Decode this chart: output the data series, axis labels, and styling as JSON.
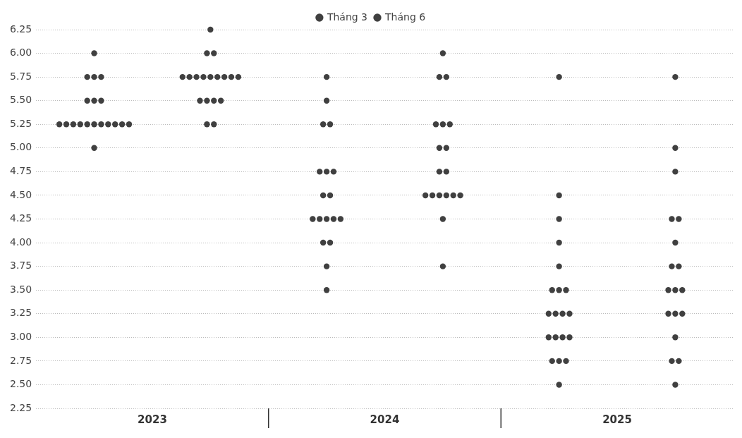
{
  "chart_data": {
    "type": "scatter",
    "xlim": [
      2022.5,
      2025.5
    ],
    "xticks": [
      2023,
      2024,
      2025
    ],
    "series": [
      {
        "name": "Tháng 3",
        "color": "#404040",
        "x": [
          2022.75,
          2022.72,
          2022.75,
          2022.78,
          2022.72,
          2022.75,
          2022.78,
          2022.6,
          2022.63,
          2022.66,
          2022.69,
          2022.72,
          2022.75,
          2022.78,
          2022.81,
          2022.84,
          2022.87,
          2022.9,
          2022.75,
          2023.75,
          2023.75,
          2023.735,
          2023.765,
          2023.72,
          2023.75,
          2023.78,
          2023.735,
          2023.765,
          2023.69,
          2023.72,
          2023.75,
          2023.78,
          2023.81,
          2023.735,
          2023.765,
          2023.75,
          2023.75,
          2024.75,
          2024.75,
          2024.75,
          2024.75,
          2024.75,
          2024.72,
          2024.75,
          2024.78,
          2024.705,
          2024.735,
          2024.765,
          2024.795,
          2024.705,
          2024.735,
          2024.765,
          2024.795,
          2024.72,
          2024.75,
          2024.78,
          2024.75
        ],
        "values": [
          6.0,
          5.75,
          5.75,
          5.75,
          5.5,
          5.5,
          5.5,
          5.25,
          5.25,
          5.25,
          5.25,
          5.25,
          5.25,
          5.25,
          5.25,
          5.25,
          5.25,
          5.25,
          5.0,
          5.75,
          5.5,
          5.25,
          5.25,
          4.75,
          4.75,
          4.75,
          4.5,
          4.5,
          4.25,
          4.25,
          4.25,
          4.25,
          4.25,
          4.0,
          4.0,
          3.75,
          3.5,
          5.75,
          4.5,
          4.25,
          4.0,
          3.75,
          3.5,
          3.5,
          3.5,
          3.25,
          3.25,
          3.25,
          3.25,
          3.0,
          3.0,
          3.0,
          3.0,
          2.75,
          2.75,
          2.75,
          2.5
        ]
      },
      {
        "name": "Tháng 6",
        "color": "#404040",
        "x": [
          2023.25,
          2023.235,
          2023.265,
          2023.13,
          2023.16,
          2023.19,
          2023.22,
          2023.25,
          2023.28,
          2023.31,
          2023.34,
          2023.37,
          2023.205,
          2023.235,
          2023.265,
          2023.295,
          2023.235,
          2023.265,
          2024.25,
          2024.235,
          2024.265,
          2024.22,
          2024.25,
          2024.28,
          2024.235,
          2024.265,
          2024.235,
          2024.265,
          2024.175,
          2024.205,
          2024.235,
          2024.265,
          2024.295,
          2024.325,
          2024.25,
          2024.25,
          2025.25,
          2025.25,
          2025.25,
          2025.235,
          2025.265,
          2025.25,
          2025.235,
          2025.265,
          2025.22,
          2025.25,
          2025.28,
          2025.22,
          2025.25,
          2025.28,
          2025.25,
          2025.235,
          2025.265,
          2025.25
        ],
        "values": [
          6.25,
          6.0,
          6.0,
          5.75,
          5.75,
          5.75,
          5.75,
          5.75,
          5.75,
          5.75,
          5.75,
          5.75,
          5.5,
          5.5,
          5.5,
          5.5,
          5.25,
          5.25,
          6.0,
          5.75,
          5.75,
          5.25,
          5.25,
          5.25,
          5.0,
          5.0,
          4.75,
          4.75,
          4.5,
          4.5,
          4.5,
          4.5,
          4.5,
          4.5,
          4.25,
          3.75,
          5.75,
          5.0,
          4.75,
          4.25,
          4.25,
          4.0,
          3.75,
          3.75,
          3.5,
          3.5,
          3.5,
          3.25,
          3.25,
          3.25,
          3.0,
          2.75,
          2.75,
          2.5
        ]
      }
    ],
    "ylim": [
      2.25,
      6.25
    ],
    "yticks": [
      {
        "value": 2.25,
        "label": "2.25"
      },
      {
        "value": 2.5,
        "label": "2.50"
      },
      {
        "value": 2.75,
        "label": "2.75"
      },
      {
        "value": 3,
        "label": "3.00"
      },
      {
        "value": 3.25,
        "label": "3.25"
      },
      {
        "value": 3.5,
        "label": "3.50"
      },
      {
        "value": 3.75,
        "label": "3.75"
      },
      {
        "value": 4,
        "label": "4.00"
      },
      {
        "value": 4.25,
        "label": "4.25"
      },
      {
        "value": 4.5,
        "label": "4.50"
      },
      {
        "value": 4.75,
        "label": "4.75"
      },
      {
        "value": 5,
        "label": "5.00"
      },
      {
        "value": 5.25,
        "label": "5.25"
      },
      {
        "value": 5.5,
        "label": "5.50"
      },
      {
        "value": 5.75,
        "label": "5.75"
      },
      {
        "value": 6,
        "label": "6.00"
      },
      {
        "value": 6.25,
        "label": "6.25"
      }
    ],
    "grid": "y",
    "legend": "top",
    "marker": "circle"
  }
}
